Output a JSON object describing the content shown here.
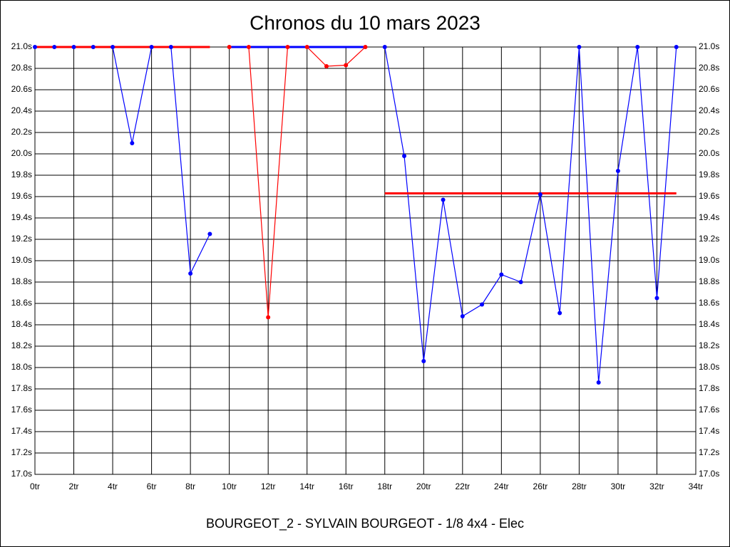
{
  "chart_data": {
    "type": "line",
    "title": "Chronos du 10 mars 2023",
    "caption": "BOURGEOT_2 - SYLVAIN BOURGEOT - 1/8 4x4 - Elec",
    "x": [
      0,
      1,
      2,
      3,
      4,
      5,
      6,
      7,
      8,
      9,
      10,
      11,
      12,
      13,
      14,
      15,
      16,
      17,
      18,
      19,
      20,
      21,
      22,
      23,
      24,
      25,
      26,
      27,
      28,
      29,
      30,
      31,
      32,
      33
    ],
    "series": [
      {
        "color": "#0000ff",
        "values": [
          21.0,
          21.0,
          21.0,
          21.0,
          21.0,
          20.1,
          21.0,
          21.0,
          18.88,
          19.25,
          null,
          null,
          null,
          null,
          null,
          null,
          null,
          null,
          21.0,
          19.98,
          18.06,
          19.57,
          18.48,
          18.59,
          18.87,
          18.8,
          19.62,
          18.51,
          21.0,
          17.86,
          19.84,
          21.0,
          18.65,
          21.0
        ]
      },
      {
        "color": "#ff0000",
        "values": [
          null,
          null,
          null,
          null,
          null,
          null,
          null,
          null,
          null,
          null,
          21.0,
          21.0,
          18.47,
          21.0,
          21.0,
          20.82,
          20.83,
          21.0,
          null,
          null,
          null,
          null,
          null,
          null,
          null,
          null,
          null,
          null,
          null,
          null,
          null,
          null,
          null,
          null
        ]
      }
    ],
    "reference_lines": [
      {
        "color": "#ff0000",
        "y": 21.0,
        "xrange": [
          0,
          9
        ]
      },
      {
        "color": "#0000ff",
        "y": 21.0,
        "xrange": [
          10,
          17
        ]
      },
      {
        "color": "#ff0000",
        "y": 19.63,
        "xrange": [
          18,
          33
        ]
      }
    ],
    "xlim": [
      0,
      34
    ],
    "xticks": [
      {
        "value": 0,
        "label": "0tr"
      },
      {
        "value": 2,
        "label": "2tr"
      },
      {
        "value": 4,
        "label": "4tr"
      },
      {
        "value": 6,
        "label": "6tr"
      },
      {
        "value": 8,
        "label": "8tr"
      },
      {
        "value": 10,
        "label": "10tr"
      },
      {
        "value": 12,
        "label": "12tr"
      },
      {
        "value": 14,
        "label": "14tr"
      },
      {
        "value": 16,
        "label": "16tr"
      },
      {
        "value": 18,
        "label": "18tr"
      },
      {
        "value": 20,
        "label": "20tr"
      },
      {
        "value": 22,
        "label": "22tr"
      },
      {
        "value": 24,
        "label": "24tr"
      },
      {
        "value": 26,
        "label": "26tr"
      },
      {
        "value": 28,
        "label": "28tr"
      },
      {
        "value": 30,
        "label": "30tr"
      },
      {
        "value": 32,
        "label": "32tr"
      },
      {
        "value": 34,
        "label": "34tr"
      }
    ],
    "ylim": [
      17.0,
      21.0
    ],
    "yticks": [
      {
        "value": 17.0,
        "label": "17.0s"
      },
      {
        "value": 17.2,
        "label": "17.2s"
      },
      {
        "value": 17.4,
        "label": "17.4s"
      },
      {
        "value": 17.6,
        "label": "17.6s"
      },
      {
        "value": 17.8,
        "label": "17.8s"
      },
      {
        "value": 18.0,
        "label": "18.0s"
      },
      {
        "value": 18.2,
        "label": "18.2s"
      },
      {
        "value": 18.4,
        "label": "18.4s"
      },
      {
        "value": 18.6,
        "label": "18.6s"
      },
      {
        "value": 18.8,
        "label": "18.8s"
      },
      {
        "value": 19.0,
        "label": "19.0s"
      },
      {
        "value": 19.2,
        "label": "19.2s"
      },
      {
        "value": 19.4,
        "label": "19.4s"
      },
      {
        "value": 19.6,
        "label": "19.6s"
      },
      {
        "value": 19.8,
        "label": "19.8s"
      },
      {
        "value": 20.0,
        "label": "20.0s"
      },
      {
        "value": 20.2,
        "label": "20.2s"
      },
      {
        "value": 20.4,
        "label": "20.4s"
      },
      {
        "value": 20.6,
        "label": "20.6s"
      },
      {
        "value": 20.8,
        "label": "20.8s"
      },
      {
        "value": 21.0,
        "label": "21.0s"
      }
    ],
    "grid": true
  }
}
